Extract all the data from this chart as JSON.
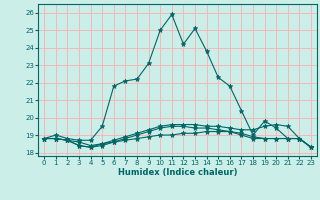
{
  "xlabel": "Humidex (Indice chaleur)",
  "bg_color": "#cceee8",
  "grid_color": "#f5b8b8",
  "line_color": "#006666",
  "xlim": [
    -0.5,
    23.5
  ],
  "ylim": [
    17.8,
    26.5
  ],
  "yticks": [
    18,
    19,
    20,
    21,
    22,
    23,
    24,
    25,
    26
  ],
  "xticks": [
    0,
    1,
    2,
    3,
    4,
    5,
    6,
    7,
    8,
    9,
    10,
    11,
    12,
    13,
    14,
    15,
    16,
    17,
    18,
    19,
    20,
    21,
    22,
    23
  ],
  "series": [
    {
      "x": [
        0,
        1,
        2,
        3,
        4,
        5,
        6,
        7,
        8,
        9,
        10,
        11,
        12,
        13,
        14,
        15,
        16,
        17,
        18,
        19,
        20,
        21,
        22,
        23
      ],
      "y": [
        18.8,
        19.0,
        18.8,
        18.7,
        18.7,
        19.5,
        21.8,
        22.1,
        22.2,
        23.1,
        25.0,
        25.9,
        24.2,
        25.1,
        23.8,
        22.3,
        21.8,
        20.4,
        19.0,
        19.8,
        19.4,
        18.8,
        18.8,
        18.3
      ]
    },
    {
      "x": [
        0,
        1,
        2,
        3,
        4,
        5,
        6,
        7,
        8,
        9,
        10,
        11,
        12,
        13,
        14,
        15,
        16,
        17,
        18,
        19,
        20,
        21,
        22,
        23
      ],
      "y": [
        18.8,
        18.8,
        18.7,
        18.4,
        18.3,
        18.5,
        18.6,
        18.7,
        18.8,
        18.9,
        19.0,
        19.0,
        19.1,
        19.1,
        19.2,
        19.2,
        19.2,
        19.0,
        18.8,
        18.8,
        18.8,
        18.8,
        18.8,
        18.3
      ]
    },
    {
      "x": [
        0,
        1,
        2,
        3,
        4,
        5,
        6,
        7,
        8,
        9,
        10,
        11,
        12,
        13,
        14,
        15,
        16,
        17,
        18,
        19,
        20,
        21,
        22,
        23
      ],
      "y": [
        18.8,
        18.8,
        18.7,
        18.6,
        18.4,
        18.5,
        18.7,
        18.9,
        19.1,
        19.3,
        19.5,
        19.6,
        19.6,
        19.6,
        19.5,
        19.5,
        19.4,
        19.3,
        19.3,
        19.5,
        19.6,
        19.5,
        18.8,
        18.3
      ]
    },
    {
      "x": [
        0,
        1,
        2,
        3,
        4,
        5,
        6,
        7,
        8,
        9,
        10,
        11,
        12,
        13,
        14,
        15,
        16,
        17,
        18,
        19,
        20,
        21,
        22,
        23
      ],
      "y": [
        18.8,
        18.8,
        18.7,
        18.4,
        18.3,
        18.4,
        18.6,
        18.8,
        19.0,
        19.2,
        19.4,
        19.5,
        19.5,
        19.4,
        19.4,
        19.3,
        19.2,
        19.1,
        18.9,
        18.8,
        18.8,
        18.8,
        18.8,
        18.3
      ]
    }
  ]
}
